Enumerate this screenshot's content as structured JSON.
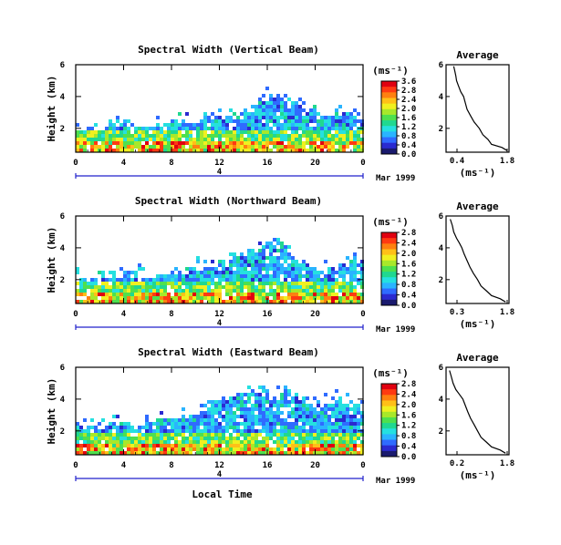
{
  "colors": {
    "colorbar": [
      "#1a1a6e",
      "#2a2ad0",
      "#2f6bff",
      "#2ab4ff",
      "#25e0e0",
      "#20d890",
      "#4ee04e",
      "#a8e82a",
      "#f0f020",
      "#ffc018",
      "#ff8010",
      "#ff3a12",
      "#e00010"
    ],
    "axis": "#000000",
    "time_bar": "#2222cc"
  },
  "chart_data": [
    {
      "type": "heatmap",
      "title": "Spectral Width (Vertical Beam)",
      "ylabel": "Height (km)",
      "ylim": [
        0.5,
        6
      ],
      "yticks": [
        "2",
        "4",
        "6"
      ],
      "xlim": [
        0,
        24
      ],
      "xticks": [
        "0",
        "4",
        "8",
        "12",
        "16",
        "20",
        "0"
      ],
      "date_label": "Mar 1999",
      "timebar_label": "4",
      "colorbar": {
        "unit": "(ms⁻¹)",
        "range": [
          0.0,
          3.6
        ],
        "ticks": [
          "0.0",
          "0.4",
          "0.8",
          "1.2",
          "1.6",
          "2.0",
          "2.4",
          "2.8",
          "3.6"
        ]
      },
      "echo_top_km": [
        2.0,
        2.1,
        2.0,
        2.3,
        2.2,
        2.1,
        2.3,
        2.4,
        2.6,
        2.4,
        2.5,
        2.7,
        3.0,
        2.8,
        3.2,
        3.6,
        4.2,
        4.0,
        3.6,
        3.3,
        3.0,
        2.8,
        3.0,
        2.8,
        2.6
      ],
      "average": {
        "title": "Average",
        "xlabel": "(ms⁻¹)",
        "xlim": [
          0.0,
          1.8
        ],
        "xticks": [
          "0.4",
          "1.8"
        ],
        "ylim": [
          0.5,
          6
        ],
        "yticks": [
          "2",
          "4",
          "6"
        ],
        "profile": [
          [
            1.75,
            0.6
          ],
          [
            1.6,
            0.8
          ],
          [
            1.3,
            1.0
          ],
          [
            1.2,
            1.3
          ],
          [
            1.05,
            1.6
          ],
          [
            0.95,
            2.0
          ],
          [
            0.8,
            2.4
          ],
          [
            0.7,
            2.8
          ],
          [
            0.6,
            3.2
          ],
          [
            0.55,
            3.6
          ],
          [
            0.5,
            4.0
          ],
          [
            0.42,
            4.3
          ],
          [
            0.35,
            4.7
          ],
          [
            0.3,
            5.0
          ],
          [
            0.28,
            5.3
          ],
          [
            0.25,
            5.6
          ],
          [
            0.22,
            5.9
          ]
        ]
      }
    },
    {
      "type": "heatmap",
      "title": "Spectral Width (Northward Beam)",
      "ylabel": "Height (km)",
      "ylim": [
        0.5,
        6
      ],
      "yticks": [
        "2",
        "4",
        "6"
      ],
      "xlim": [
        0,
        24
      ],
      "xticks": [
        "0",
        "4",
        "8",
        "12",
        "16",
        "20",
        "0"
      ],
      "date_label": "Mar 1999",
      "timebar_label": "4",
      "colorbar": {
        "unit": "(ms⁻¹)",
        "range": [
          0.0,
          2.8
        ],
        "ticks": [
          "0.0",
          "0.4",
          "0.8",
          "1.2",
          "1.6",
          "2.0",
          "2.4",
          "2.8"
        ]
      },
      "echo_top_km": [
        2.1,
        2.2,
        2.0,
        2.3,
        2.2,
        2.4,
        2.2,
        2.5,
        2.6,
        2.5,
        2.7,
        2.9,
        3.1,
        3.4,
        3.7,
        4.0,
        4.4,
        4.2,
        3.5,
        3.1,
        2.9,
        2.7,
        3.1,
        3.3,
        3.0
      ],
      "average": {
        "title": "Average",
        "xlabel": "(ms⁻¹)",
        "xlim": [
          0.0,
          1.8
        ],
        "xticks": [
          "0.3",
          "1.8"
        ],
        "ylim": [
          0.5,
          6
        ],
        "yticks": [
          "2",
          "4",
          "6"
        ],
        "profile": [
          [
            1.7,
            0.6
          ],
          [
            1.55,
            0.8
          ],
          [
            1.3,
            1.0
          ],
          [
            1.15,
            1.3
          ],
          [
            1.0,
            1.6
          ],
          [
            0.9,
            2.0
          ],
          [
            0.78,
            2.4
          ],
          [
            0.68,
            2.8
          ],
          [
            0.6,
            3.2
          ],
          [
            0.52,
            3.6
          ],
          [
            0.45,
            4.0
          ],
          [
            0.38,
            4.3
          ],
          [
            0.3,
            4.6
          ],
          [
            0.22,
            5.0
          ],
          [
            0.18,
            5.4
          ],
          [
            0.12,
            5.8
          ]
        ]
      }
    },
    {
      "type": "heatmap",
      "title": "Spectral Width (Eastward Beam)",
      "ylabel": "Height (km)",
      "ylim": [
        0.5,
        6
      ],
      "yticks": [
        "2",
        "4",
        "6"
      ],
      "xlim": [
        0,
        24
      ],
      "xticks": [
        "0",
        "4",
        "8",
        "12",
        "16",
        "20",
        "0"
      ],
      "date_label": "Mar 1999",
      "timebar_label": "4",
      "xlabel": "Local Time",
      "colorbar": {
        "unit": "(ms⁻¹)",
        "range": [
          0.0,
          2.8
        ],
        "ticks": [
          "0.0",
          "0.4",
          "0.8",
          "1.2",
          "1.6",
          "2.0",
          "2.4",
          "2.8"
        ]
      },
      "echo_top_km": [
        2.2,
        2.4,
        2.3,
        2.5,
        2.6,
        2.4,
        2.7,
        2.8,
        2.9,
        2.8,
        3.2,
        3.6,
        4.0,
        4.3,
        4.6,
        4.5,
        4.2,
        4.6,
        4.3,
        3.9,
        3.4,
        3.8,
        4.0,
        3.6,
        3.4
      ],
      "average": {
        "title": "Average",
        "xlabel": "(ms⁻¹)",
        "xlim": [
          0.0,
          1.8
        ],
        "xticks": [
          "0.2",
          "1.8"
        ],
        "ylim": [
          0.5,
          6
        ],
        "yticks": [
          "2",
          "4",
          "6"
        ],
        "profile": [
          [
            1.7,
            0.6
          ],
          [
            1.55,
            0.8
          ],
          [
            1.3,
            1.0
          ],
          [
            1.15,
            1.3
          ],
          [
            1.0,
            1.6
          ],
          [
            0.9,
            2.0
          ],
          [
            0.8,
            2.4
          ],
          [
            0.7,
            2.8
          ],
          [
            0.62,
            3.2
          ],
          [
            0.55,
            3.6
          ],
          [
            0.48,
            4.0
          ],
          [
            0.38,
            4.3
          ],
          [
            0.28,
            4.6
          ],
          [
            0.2,
            5.0
          ],
          [
            0.15,
            5.4
          ],
          [
            0.1,
            5.8
          ]
        ]
      }
    }
  ]
}
